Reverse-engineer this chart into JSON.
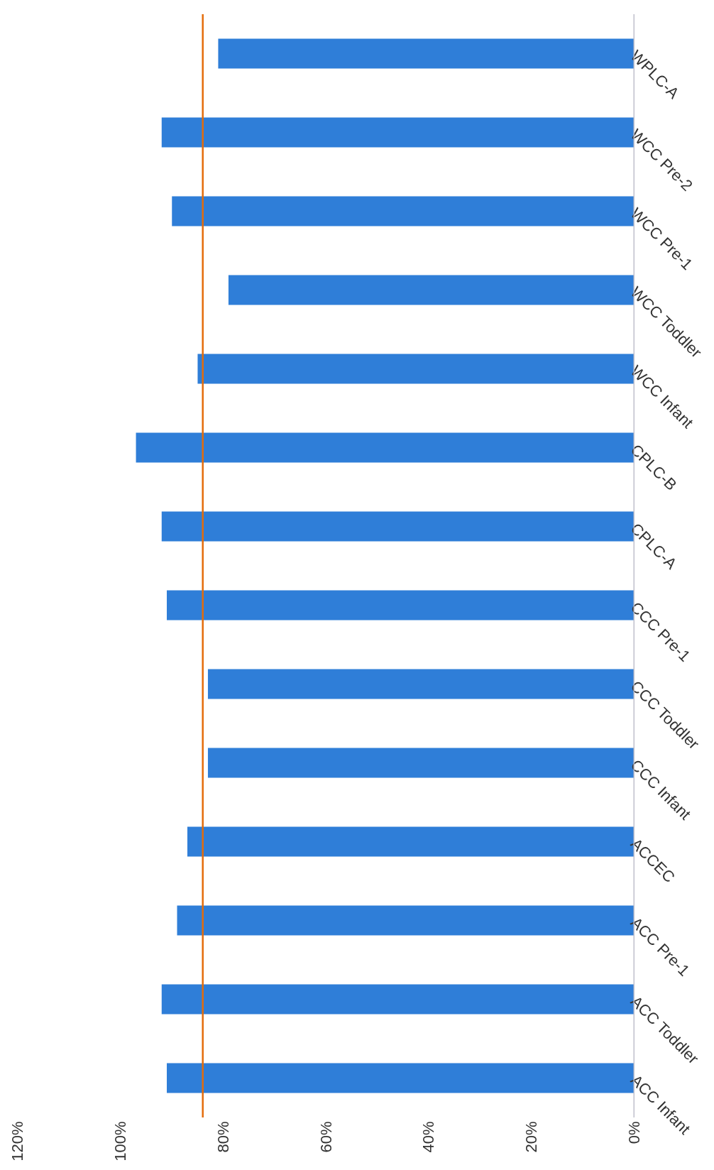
{
  "chart_data": {
    "type": "bar",
    "orientation": "horizontal",
    "categories": [
      "WPLC-A",
      "WCC Pre-2",
      "WCC Pre-1",
      "WCC Toddler",
      "WCC Infant",
      "CPLC-B",
      "CPLC-A",
      "CCC Pre-1",
      "CCC Toddler",
      "CCC Infant",
      "ACCEC",
      "ACC Pre-1",
      "ACC Toddler",
      "ACC Infant"
    ],
    "values": [
      81,
      92,
      90,
      79,
      85,
      97,
      92,
      91,
      83,
      83,
      87,
      89,
      92,
      91
    ],
    "color": "#2f7ed8",
    "xlim": [
      120,
      0
    ],
    "xticks": [
      {
        "value": 0,
        "label": "0%"
      },
      {
        "value": 20,
        "label": "20%"
      },
      {
        "value": 40,
        "label": "40%"
      },
      {
        "value": 60,
        "label": "60%"
      },
      {
        "value": 80,
        "label": "80%"
      },
      {
        "value": 100,
        "label": "100%"
      },
      {
        "value": 120,
        "label": "120%"
      }
    ],
    "ref_lines": [
      {
        "axis": "x",
        "value": 84,
        "color": "#e46c0a"
      }
    ]
  }
}
